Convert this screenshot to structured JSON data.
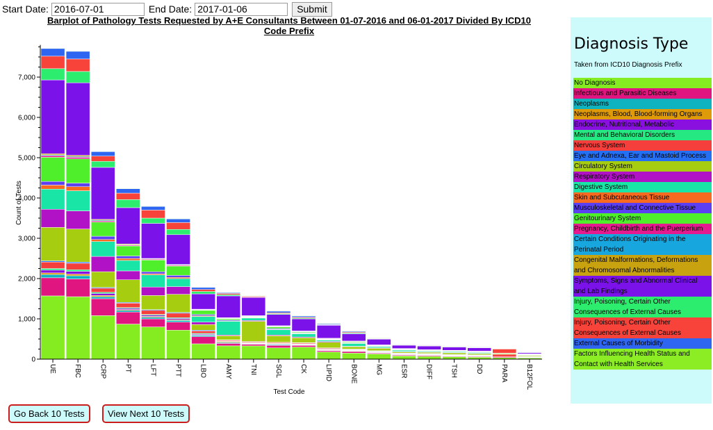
{
  "form": {
    "start_label": "Start Date:",
    "start_value": "2016-07-01",
    "end_label": "End Date:",
    "end_value": "2017-01-06",
    "submit_label": "Submit"
  },
  "legend": {
    "title": "Diagnosis Type",
    "subtitle": "Taken from ICD10 Diagnosis Prefix",
    "items": [
      {
        "label": "No Diagnosis",
        "color": "#86ec22"
      },
      {
        "label": "Infectious and Parasitic Diseases",
        "color": "#e0157f"
      },
      {
        "label": "Neoplasms",
        "color": "#0fb2bf"
      },
      {
        "label": "Neoplasms, Blood, Blood-forming Organs",
        "color": "#de9a08"
      },
      {
        "label": "Endocrine, Nutritional, Metabolic",
        "color": "#8a10e0"
      },
      {
        "label": "Mental and Behavioral Disorders",
        "color": "#25e883"
      },
      {
        "label": "Nervous System",
        "color": "#f53f3c"
      },
      {
        "label": "Eye and Adnexa, Ear and Mastoid Process",
        "color": "#2570f2"
      },
      {
        "label": "Circulatory System",
        "color": "#a6cd10"
      },
      {
        "label": "Respiratory System",
        "color": "#b212c6"
      },
      {
        "label": "Digestive System",
        "color": "#18e5a6"
      },
      {
        "label": "Skin and Subcutaneous Tissue",
        "color": "#f76a1f"
      },
      {
        "label": "Musculoskeletal and Connective Tissue",
        "color": "#5c3ff0"
      },
      {
        "label": "Genitourinary System",
        "color": "#4fef2c"
      },
      {
        "label": "Pregnancy, Childbirth and the Puerperium",
        "color": "#e41a8e"
      },
      {
        "label": "Certain Conditions Originating in the Perinatal Period",
        "color": "#18a6df"
      },
      {
        "label": "Congenital Malformations, Deformations and Chromosomal Abnormalities",
        "color": "#c8a20f"
      },
      {
        "label": "Symptoms, Signs and Abnormal Clinical and Lab Findings",
        "color": "#7b12ea"
      },
      {
        "label": "Injury, Poisoning, Certain Other Consequences of External Causes",
        "color": "#2ded6e"
      },
      {
        "label": "Injury, Poisoning, Certain Other Consequences of External Causes",
        "color": "#f8433b"
      },
      {
        "label": "External Causes of Morbidity",
        "color": "#2e66f1"
      },
      {
        "label": "Factors Influencing Health Status and Contact with Health Services",
        "color": "#8ded25"
      }
    ]
  },
  "nav": {
    "back_label": "Go Back 10 Tests",
    "next_label": "View Next 10 Tests"
  },
  "chart_data": {
    "type": "bar",
    "stacked": true,
    "title": "Barplot of Pathology Tests Requested by A+E Consultants Between 01-07-2016 and 06-01-2017 Divided By ICD10 Code Prefix",
    "xlabel": "Test Code",
    "ylabel": "Count of Tests",
    "ylim": [
      0,
      7800
    ],
    "yticks": [
      0,
      1000,
      2000,
      3000,
      4000,
      5000,
      6000,
      7000
    ],
    "ytick_labels": [
      "0",
      "1,000",
      "2,000",
      "3,000",
      "4,000",
      "5,000",
      "6,000",
      "7,000"
    ],
    "categories": [
      "UE",
      "FBC",
      "CRP",
      "PT",
      "LFT",
      "PTT",
      "LBO",
      "AMY",
      "TNI",
      "SGL",
      "CK",
      "LIPID",
      "BONE",
      "MG",
      "ESR",
      "DIFF",
      "TSH",
      "DD",
      "PARA",
      "B12FOL"
    ],
    "series": [
      {
        "values": [
          1570,
          1550,
          1080,
          870,
          800,
          720,
          380,
          330,
          330,
          280,
          300,
          180,
          150,
          130,
          80,
          70,
          60,
          50,
          40,
          30
        ]
      },
      {
        "values": [
          450,
          440,
          420,
          300,
          200,
          200,
          180,
          60,
          40,
          60,
          40,
          30,
          40,
          20,
          20,
          20,
          15,
          15,
          20,
          10
        ]
      },
      {
        "values": [
          80,
          80,
          50,
          40,
          40,
          40,
          30,
          20,
          10,
          20,
          10,
          10,
          10,
          10,
          10,
          10,
          10,
          10,
          0,
          5
        ]
      },
      {
        "values": [
          40,
          40,
          30,
          20,
          20,
          20,
          10,
          20,
          10,
          10,
          10,
          10,
          10,
          10,
          10,
          10,
          5,
          5,
          0,
          5
        ]
      },
      {
        "values": [
          70,
          70,
          50,
          30,
          30,
          30,
          20,
          10,
          10,
          10,
          10,
          10,
          10,
          10,
          10,
          10,
          5,
          5,
          0,
          5
        ]
      },
      {
        "values": [
          40,
          40,
          30,
          20,
          20,
          20,
          20,
          10,
          10,
          10,
          10,
          10,
          10,
          10,
          5,
          5,
          5,
          5,
          0,
          5
        ]
      },
      {
        "values": [
          160,
          160,
          100,
          110,
          100,
          110,
          60,
          20,
          20,
          20,
          20,
          20,
          10,
          10,
          10,
          10,
          10,
          10,
          60,
          5
        ]
      },
      {
        "values": [
          30,
          30,
          20,
          20,
          20,
          20,
          20,
          10,
          10,
          10,
          10,
          10,
          10,
          10,
          5,
          5,
          5,
          5,
          0,
          5
        ]
      },
      {
        "values": [
          830,
          820,
          390,
          560,
          350,
          450,
          140,
          100,
          500,
          160,
          120,
          140,
          60,
          60,
          30,
          30,
          40,
          30,
          20,
          20
        ]
      },
      {
        "values": [
          450,
          450,
          380,
          220,
          210,
          190,
          60,
          20,
          20,
          20,
          20,
          20,
          10,
          10,
          10,
          10,
          10,
          10,
          0,
          5
        ]
      },
      {
        "values": [
          500,
          500,
          370,
          260,
          300,
          200,
          140,
          340,
          60,
          130,
          80,
          30,
          70,
          30,
          30,
          20,
          20,
          20,
          10,
          10
        ]
      },
      {
        "values": [
          100,
          100,
          50,
          50,
          30,
          30,
          20,
          10,
          10,
          10,
          10,
          10,
          10,
          10,
          10,
          5,
          5,
          5,
          0,
          5
        ]
      },
      {
        "values": [
          90,
          90,
          80,
          60,
          50,
          50,
          30,
          20,
          10,
          20,
          10,
          10,
          10,
          10,
          10,
          5,
          5,
          5,
          0,
          5
        ]
      },
      {
        "values": [
          600,
          600,
          350,
          250,
          290,
          230,
          100,
          30,
          10,
          40,
          20,
          10,
          20,
          10,
          10,
          10,
          10,
          10,
          0,
          5
        ]
      },
      {
        "values": [
          40,
          40,
          30,
          20,
          20,
          20,
          10,
          10,
          10,
          10,
          10,
          10,
          10,
          5,
          5,
          5,
          5,
          5,
          0,
          5
        ]
      },
      {
        "values": [
          20,
          20,
          20,
          10,
          10,
          10,
          10,
          10,
          10,
          10,
          10,
          5,
          5,
          5,
          5,
          5,
          5,
          5,
          0,
          5
        ]
      },
      {
        "values": [
          30,
          30,
          20,
          20,
          10,
          10,
          10,
          10,
          10,
          10,
          10,
          5,
          5,
          5,
          5,
          5,
          5,
          5,
          0,
          5
        ]
      },
      {
        "values": [
          1830,
          1800,
          1290,
          900,
          870,
          740,
          380,
          540,
          450,
          280,
          300,
          320,
          180,
          140,
          80,
          90,
          80,
          80,
          0,
          25
        ]
      },
      {
        "values": [
          280,
          280,
          150,
          200,
          130,
          130,
          60,
          30,
          10,
          20,
          20,
          10,
          20,
          10,
          10,
          10,
          10,
          10,
          0,
          5
        ]
      },
      {
        "values": [
          310,
          310,
          130,
          160,
          200,
          170,
          50,
          30,
          20,
          20,
          20,
          10,
          20,
          10,
          10,
          10,
          10,
          10,
          100,
          5
        ]
      },
      {
        "values": [
          190,
          190,
          110,
          110,
          90,
          90,
          50,
          20,
          10,
          40,
          30,
          20,
          20,
          10,
          10,
          10,
          10,
          10,
          0,
          10
        ]
      },
      {
        "values": [
          10,
          10,
          10,
          10,
          10,
          10,
          10,
          10,
          10,
          10,
          10,
          10,
          10,
          10,
          5,
          5,
          5,
          5,
          0,
          5
        ]
      }
    ]
  }
}
